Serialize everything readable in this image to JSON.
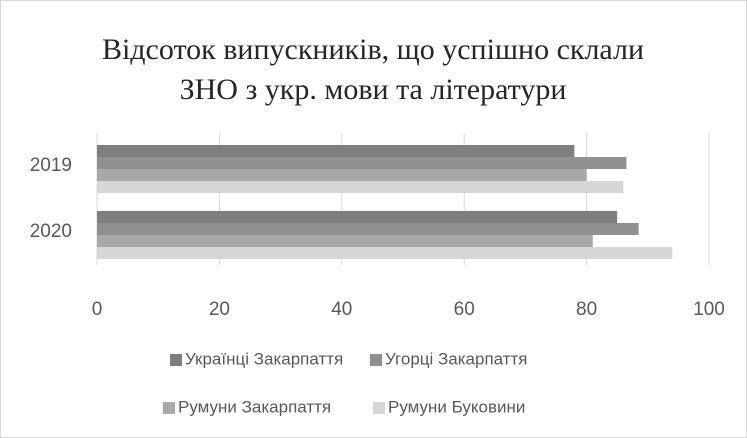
{
  "chart_data": {
    "type": "bar",
    "orientation": "horizontal",
    "title": "Відсоток випускників, що успішно склали\nЗНО з укр. мови та літератури",
    "categories": [
      "2019",
      "2020"
    ],
    "series": [
      {
        "name": "Українці Закарпаття",
        "color": "#7f7f7f",
        "values": [
          78,
          85
        ]
      },
      {
        "name": "Угорці Закарпаття",
        "color": "#909090",
        "values": [
          86.5,
          88.5
        ]
      },
      {
        "name": "Румуни Закарпаття",
        "color": "#a8a8a8",
        "values": [
          80,
          81
        ]
      },
      {
        "name": "Румуни Буковини",
        "color": "#d6d6d6",
        "values": [
          86,
          94
        ]
      }
    ],
    "xlim": [
      0,
      100
    ],
    "xticks": [
      0,
      20,
      40,
      60,
      80,
      100
    ],
    "grid": true,
    "legend": "bottom"
  }
}
